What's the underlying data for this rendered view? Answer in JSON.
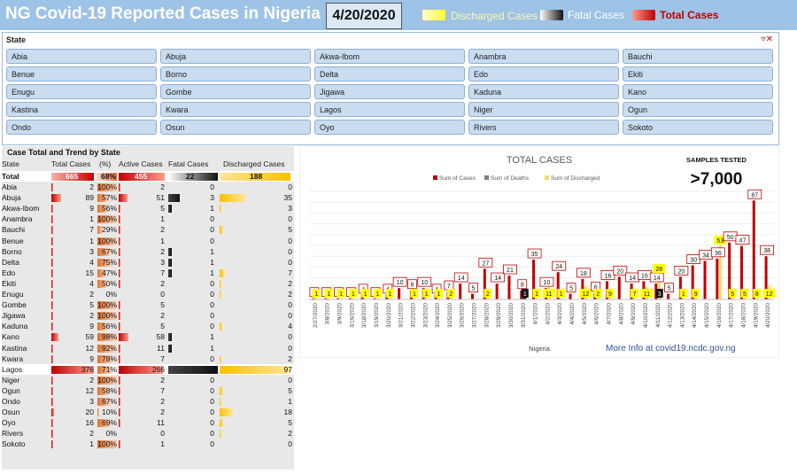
{
  "header": {
    "title": "NG Covid-19 Reported Cases in Nigeria",
    "date": "4/20/2020",
    "legend": [
      {
        "label": "Discharged Cases",
        "color": "#ffff66",
        "text_color": "#9dc3e6"
      },
      {
        "label": "Fatal Cases",
        "color": "#222222",
        "text_color": "#ffffff"
      },
      {
        "label": "Total Cases",
        "color": "#c00000",
        "text_color": "#c00000"
      }
    ]
  },
  "slicer": {
    "title": "State",
    "items": [
      "Abia",
      "Abuja",
      "Akwa-Ibom",
      "Anambra",
      "Bauchi",
      "Benue",
      "Borno",
      "Delta",
      "Edo",
      "Ekiti",
      "Enugu",
      "Gombe",
      "Jigawa",
      "Kaduna",
      "Kano",
      "Kastina",
      "Kwara",
      "Lagos",
      "Niger",
      "Ogun",
      "Ondo",
      "Osun",
      "Oyo",
      "Rivers",
      "Sokoto"
    ]
  },
  "table": {
    "title": "Case Total and Trend by State",
    "headers": [
      "State",
      "Total Cases",
      "(%)",
      "Active Cases",
      "Fatal Cases",
      "Discharged Cases"
    ],
    "total": {
      "state": "Total",
      "total": "665",
      "pct": "68%",
      "active": "455",
      "fatal": "22",
      "discharged": "188"
    },
    "rows": [
      {
        "state": "Abia",
        "total": 2,
        "pct": "100%",
        "active": 2,
        "fatal": 0,
        "discharged": 0
      },
      {
        "state": "Abuja",
        "total": 89,
        "pct": "57%",
        "active": 51,
        "fatal": 3,
        "discharged": 35
      },
      {
        "state": "Akwa-Ibom",
        "total": 9,
        "pct": "56%",
        "active": 5,
        "fatal": 1,
        "discharged": 3
      },
      {
        "state": "Anambra",
        "total": 1,
        "pct": "100%",
        "active": 1,
        "fatal": 0,
        "discharged": 0
      },
      {
        "state": "Bauchi",
        "total": 7,
        "pct": "29%",
        "active": 2,
        "fatal": 0,
        "discharged": 5
      },
      {
        "state": "Benue",
        "total": 1,
        "pct": "100%",
        "active": 1,
        "fatal": 0,
        "discharged": 0
      },
      {
        "state": "Borno",
        "total": 3,
        "pct": "67%",
        "active": 2,
        "fatal": 1,
        "discharged": 0
      },
      {
        "state": "Delta",
        "total": 4,
        "pct": "75%",
        "active": 3,
        "fatal": 1,
        "discharged": 0
      },
      {
        "state": "Edo",
        "total": 15,
        "pct": "47%",
        "active": 7,
        "fatal": 1,
        "discharged": 7
      },
      {
        "state": "Ekiti",
        "total": 4,
        "pct": "50%",
        "active": 2,
        "fatal": 0,
        "discharged": 2
      },
      {
        "state": "Enugu",
        "total": 2,
        "pct": "0%",
        "active": 0,
        "fatal": 0,
        "discharged": 2
      },
      {
        "state": "Gombe",
        "total": 5,
        "pct": "100%",
        "active": 5,
        "fatal": 0,
        "discharged": 0
      },
      {
        "state": "Jigawa",
        "total": 2,
        "pct": "100%",
        "active": 2,
        "fatal": 0,
        "discharged": 0
      },
      {
        "state": "Kaduna",
        "total": 9,
        "pct": "56%",
        "active": 5,
        "fatal": 0,
        "discharged": 4
      },
      {
        "state": "Kano",
        "total": 59,
        "pct": "98%",
        "active": 58,
        "fatal": 1,
        "discharged": 0
      },
      {
        "state": "Kastina",
        "total": 12,
        "pct": "92%",
        "active": 11,
        "fatal": 1,
        "discharged": 0
      },
      {
        "state": "Kwara",
        "total": 9,
        "pct": "78%",
        "active": 7,
        "fatal": 0,
        "discharged": 2
      },
      {
        "state": "Lagos",
        "total": 376,
        "pct": "71%",
        "active": 266,
        "fatal": 13,
        "discharged": 97
      },
      {
        "state": "Niger",
        "total": 2,
        "pct": "100%",
        "active": 2,
        "fatal": 0,
        "discharged": 0
      },
      {
        "state": "Ogun",
        "total": 12,
        "pct": "58%",
        "active": 7,
        "fatal": 0,
        "discharged": 5
      },
      {
        "state": "Ondo",
        "total": 3,
        "pct": "67%",
        "active": 2,
        "fatal": 0,
        "discharged": 1
      },
      {
        "state": "Osun",
        "total": 20,
        "pct": "10%",
        "active": 2,
        "fatal": 0,
        "discharged": 18
      },
      {
        "state": "Oyo",
        "total": 16,
        "pct": "69%",
        "active": 11,
        "fatal": 0,
        "discharged": 5
      },
      {
        "state": "Rivers",
        "total": 2,
        "pct": "0%",
        "active": 0,
        "fatal": 0,
        "discharged": 2
      },
      {
        "state": "Sokoto",
        "total": 1,
        "pct": "100%",
        "active": 1,
        "fatal": 0,
        "discharged": 0
      }
    ]
  },
  "chart_data": {
    "type": "bar",
    "title": "TOTAL CASES",
    "legend": [
      "Sum of Cases",
      "Sum of Deaths",
      "Sum of Discharged"
    ],
    "xlabel": "Nigeria",
    "categories": [
      "2/27/2020",
      "3/8/2020",
      "3/9/2020",
      "3/16/2020",
      "3/18/2020",
      "3/19/2020",
      "3/20/2020",
      "3/21/2020",
      "3/22/2020",
      "3/23/2020",
      "3/24/2020",
      "3/25/2020",
      "3/26/2020",
      "3/27/2020",
      "3/28/2020",
      "3/29/2020",
      "3/30/2020",
      "3/31/2020",
      "4/1/2020",
      "4/2/2020",
      "4/3/2020",
      "4/4/2020",
      "4/5/2020",
      "4/6/2020",
      "4/7/2020",
      "4/8/2020",
      "4/9/2020",
      "4/10/2020",
      "4/11/2020",
      "4/12/2020",
      "4/13/2020",
      "4/14/2020",
      "4/15/2020",
      "4/16/2020",
      "4/17/2020",
      "4/18/2020",
      "4/19/2020",
      "4/20/2020"
    ],
    "series": [
      {
        "name": "Sum of Cases",
        "values": [
          1,
          1,
          1,
          1,
          4,
          1,
          4,
          10,
          8,
          10,
          4,
          7,
          14,
          5,
          27,
          14,
          21,
          8,
          35,
          10,
          24,
          5,
          18,
          6,
          16,
          20,
          14,
          16,
          14,
          5,
          20,
          30,
          34,
          36,
          50,
          47,
          87,
          38
        ]
      },
      {
        "name": "Sum of Deaths",
        "values": [
          0,
          0,
          0,
          0,
          0,
          0,
          0,
          0,
          0,
          0,
          0,
          0,
          0,
          0,
          0,
          0,
          0,
          1,
          0,
          0,
          0,
          0,
          0,
          0,
          0,
          0,
          0,
          0,
          3,
          0,
          0,
          0,
          0,
          0,
          0,
          0,
          0,
          0
        ]
      },
      {
        "name": "Sum of Discharged",
        "values": [
          1,
          1,
          1,
          1,
          1,
          1,
          1,
          0,
          1,
          1,
          1,
          2,
          0,
          0,
          2,
          0,
          0,
          0,
          1,
          11,
          1,
          0,
          12,
          2,
          9,
          0,
          7,
          11,
          28,
          0,
          1,
          9,
          0,
          53,
          5,
          5,
          8,
          12
        ]
      }
    ],
    "ylim": [
      0,
      95
    ]
  },
  "samples": {
    "label": "SAMPLES TESTED",
    "value": ">7,000"
  },
  "footer": {
    "info": "More Info at covid19.ncdc.gov.ng"
  }
}
